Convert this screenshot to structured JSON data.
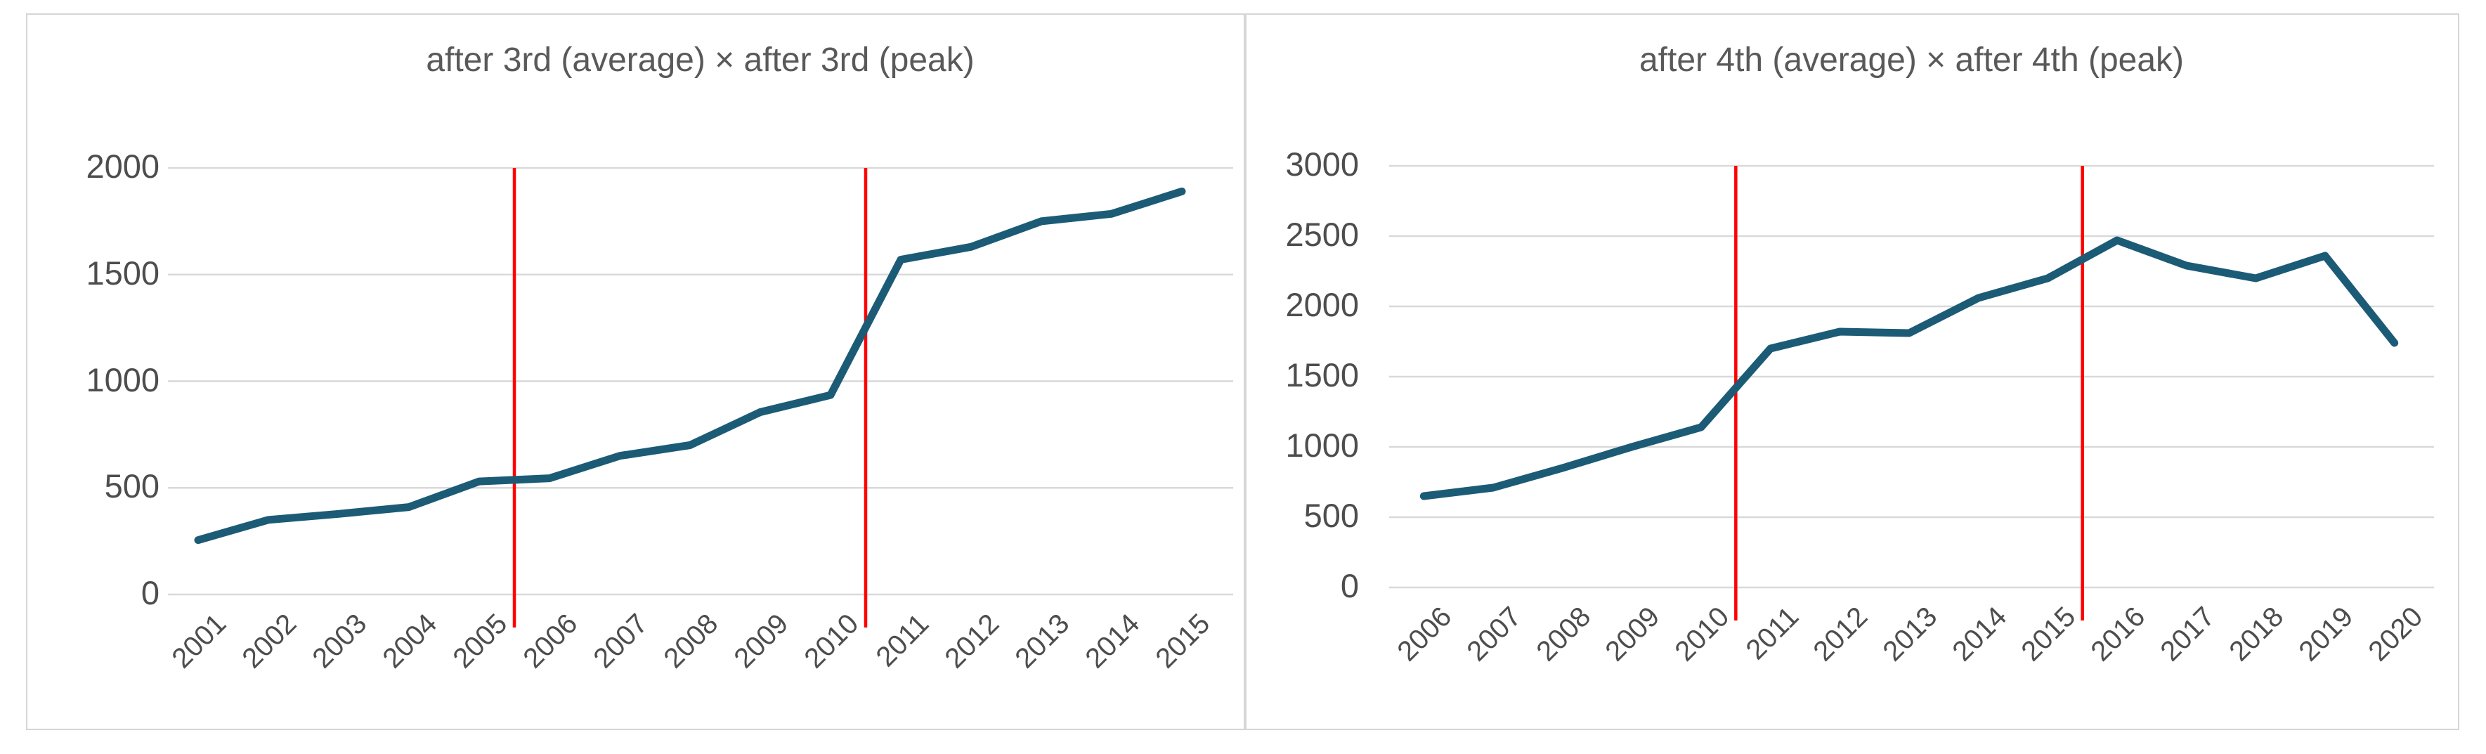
{
  "colors": {
    "background": "#FFFFFF",
    "panel_border": "#D6D6D6",
    "gridline": "#D9D9D9",
    "axis_text": "#4D4D4D",
    "title_text": "#595959",
    "series_line": "#1C5B76",
    "marker_line": "#FF0000"
  },
  "chart_data": [
    {
      "type": "line",
      "title": "after 3rd (average) × after 3rd (peak)",
      "categories": [
        "2001",
        "2002",
        "2003",
        "2004",
        "2005",
        "2006",
        "2007",
        "2008",
        "2009",
        "2010",
        "2011",
        "2012",
        "2013",
        "2014",
        "2015"
      ],
      "series": [
        {
          "name": "after 3rd",
          "values": [
            255,
            350,
            378,
            410,
            530,
            545,
            650,
            700,
            855,
            935,
            1570,
            1630,
            1750,
            1785,
            1890
          ]
        }
      ],
      "ylim": [
        0,
        2000
      ],
      "ytick_step": 500,
      "ytick_labels": [
        "0",
        "500",
        "1000",
        "1500",
        "2000"
      ],
      "grid": true,
      "legend": "none",
      "xlabel": "",
      "ylabel": "",
      "line_color": "#1C5B76",
      "vlines": [
        {
          "between": [
            "2005",
            "2006"
          ],
          "color": "#FF0000"
        },
        {
          "between": [
            "2010",
            "2011"
          ],
          "color": "#FF0000"
        }
      ]
    },
    {
      "type": "line",
      "title": "after 4th (average) × after 4th (peak)",
      "categories": [
        "2006",
        "2007",
        "2008",
        "2009",
        "2010",
        "2011",
        "2012",
        "2013",
        "2014",
        "2015",
        "2016",
        "2017",
        "2018",
        "2019",
        "2020"
      ],
      "series": [
        {
          "name": "after 4th",
          "values": [
            650,
            710,
            850,
            1000,
            1140,
            1700,
            1820,
            1810,
            2060,
            2200,
            2470,
            2290,
            2200,
            2360,
            1740
          ]
        }
      ],
      "ylim": [
        0,
        3000
      ],
      "ytick_step": 500,
      "ytick_labels": [
        "0",
        "500",
        "1000",
        "1500",
        "2000",
        "2500",
        "3000"
      ],
      "grid": true,
      "legend": "none",
      "xlabel": "",
      "ylabel": "",
      "line_color": "#1C5B76",
      "vlines": [
        {
          "between": [
            "2010",
            "2011"
          ],
          "color": "#FF0000"
        },
        {
          "between": [
            "2015",
            "2016"
          ],
          "color": "#FF0000"
        }
      ]
    }
  ]
}
